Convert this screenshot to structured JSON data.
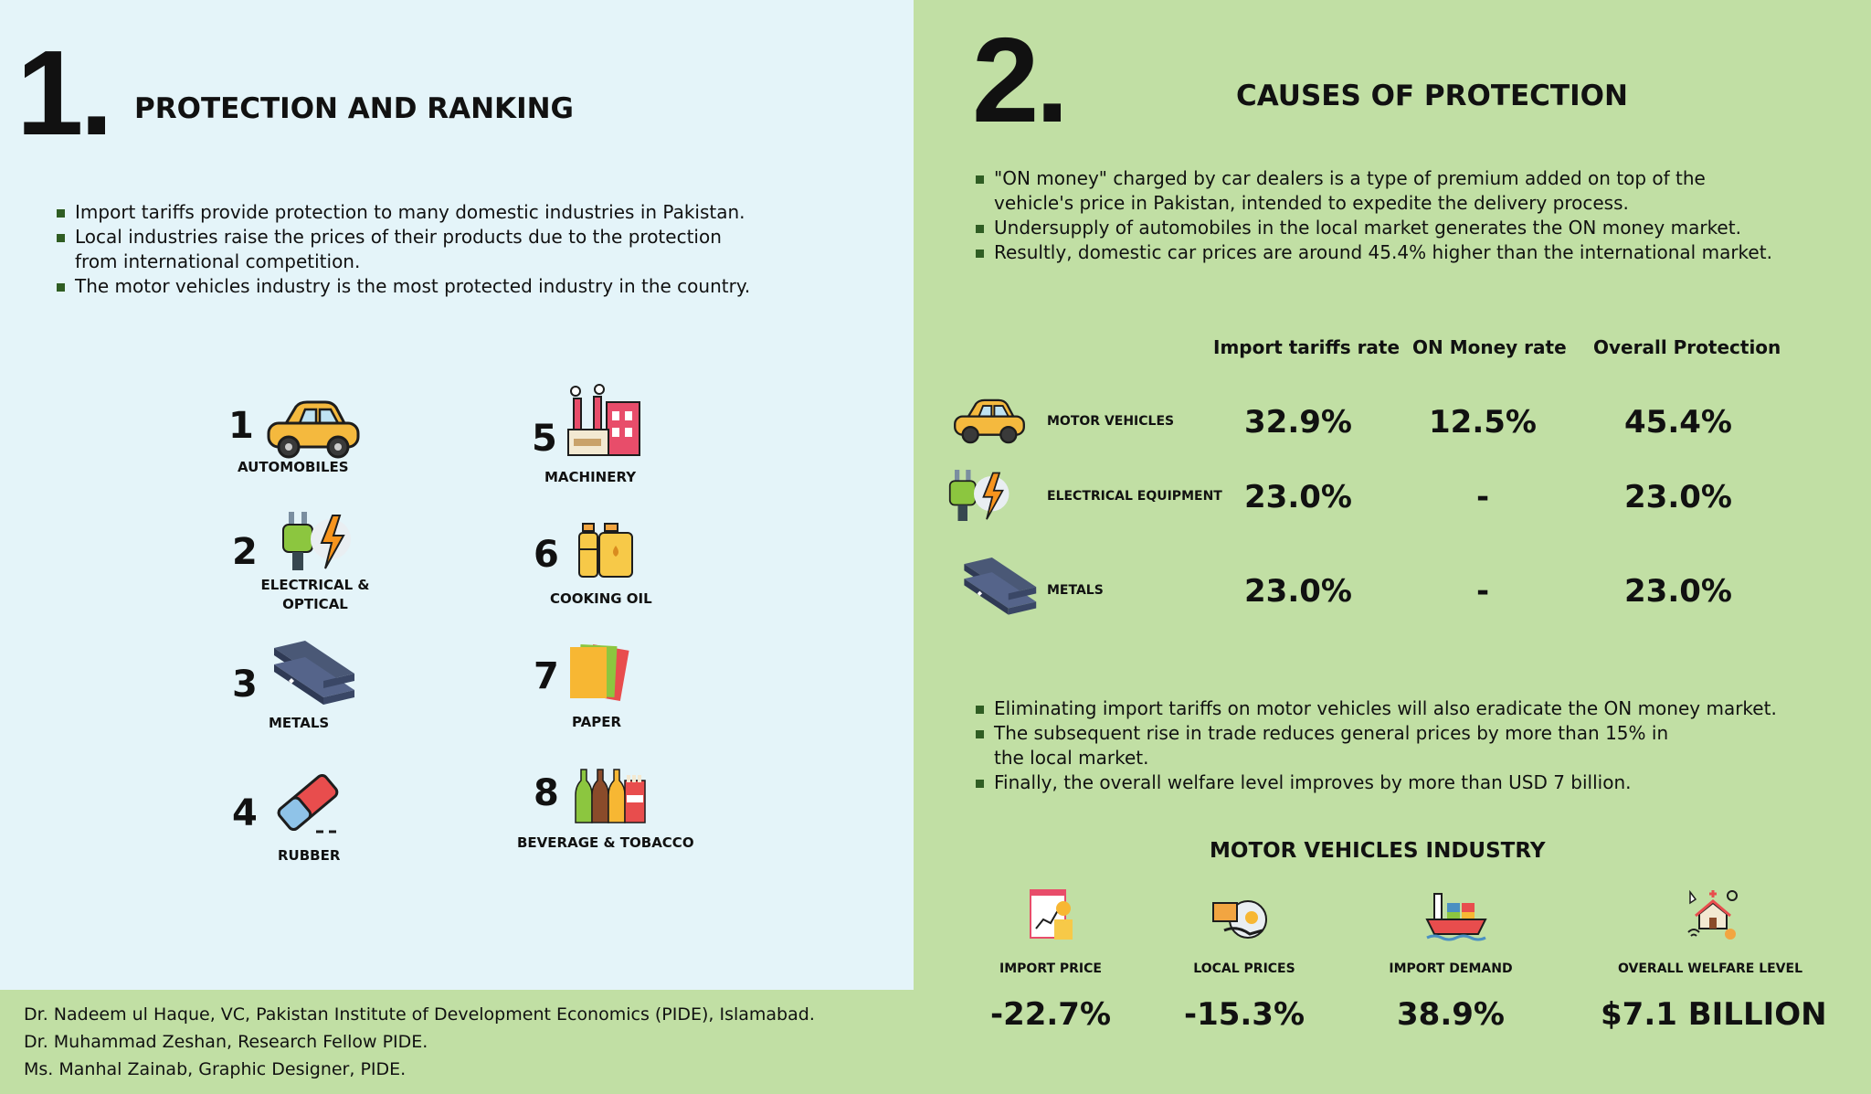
{
  "section1": {
    "number": "1.",
    "title": "PROTECTION AND RANKING",
    "bullets": [
      "Import tariffs provide protection to many domestic industries in Pakistan.",
      "Local industries raise the prices of their products due to the protection from international competition.",
      "The motor vehicles industry is the most protected industry in the country."
    ],
    "ranking": [
      {
        "rank": "1",
        "label": "AUTOMOBILES",
        "icon": "car-icon"
      },
      {
        "rank": "2",
        "label": "ELECTRICAL & OPTICAL",
        "icon": "plug-lightning-icon"
      },
      {
        "rank": "3",
        "label": "METALS",
        "icon": "steel-beams-icon"
      },
      {
        "rank": "4",
        "label": "RUBBER",
        "icon": "eraser-icon"
      },
      {
        "rank": "5",
        "label": "MACHINERY",
        "icon": "factory-icon"
      },
      {
        "rank": "6",
        "label": "COOKING OIL",
        "icon": "oil-bottles-icon"
      },
      {
        "rank": "7",
        "label": "PAPER",
        "icon": "paper-sheets-icon"
      },
      {
        "rank": "8",
        "label": "BEVERAGE & TOBACCO",
        "icon": "bottles-cigarettes-icon"
      }
    ]
  },
  "section2": {
    "number": "2.",
    "title": "CAUSES OF PROTECTION",
    "bullets": [
      "\"ON money\" charged by car dealers is a type of premium added on top of the vehicle's price in Pakistan, intended to expedite the delivery process.",
      "Undersupply of automobiles in the local market generates the ON money market.",
      "Resultly, domestic car prices are around 45.4% higher than the international market."
    ],
    "table": {
      "columns": [
        "Import tariffs rate",
        "ON Money rate",
        "Overall Protection"
      ],
      "rows": [
        {
          "label": "MOTOR VEHICLES",
          "icon": "car-icon",
          "values": [
            "32.9%",
            "12.5%",
            "45.4%"
          ]
        },
        {
          "label": "ELECTRICAL EQUIPMENT",
          "icon": "plug-lightning-icon",
          "values": [
            "23.0%",
            "-",
            "23.0%"
          ]
        },
        {
          "label": "METALS",
          "icon": "steel-beams-icon",
          "values": [
            "23.0%",
            "-",
            "23.0%"
          ]
        }
      ]
    },
    "bullets2": [
      "Eliminating import tariffs on motor vehicles will also eradicate the ON money market.",
      "The subsequent rise in trade reduces general prices by more than 15% in the local market.",
      "Finally, the overall welfare level improves by more than USD 7 billion."
    ],
    "industry": {
      "title": "MOTOR VEHICLES INDUSTRY",
      "stats": [
        {
          "label": "IMPORT PRICE",
          "value": "-22.7%",
          "icon": "price-chart-icon"
        },
        {
          "label": "LOCAL PRICES",
          "value": "-15.3%",
          "icon": "price-tag-icon"
        },
        {
          "label": "IMPORT DEMAND",
          "value": "38.9%",
          "icon": "cargo-ship-icon"
        },
        {
          "label": "OVERALL WELFARE LEVEL",
          "value": "$7.1 BILLION",
          "icon": "welfare-house-icon"
        }
      ]
    }
  },
  "credits": [
    "Dr. Nadeem ul Haque, VC, Pakistan Institute of Development Economics (PIDE), Islamabad.",
    "Dr. Muhammad Zeshan, Research Fellow PIDE.",
    "Ms. Manhal Zainab, Graphic Designer, PIDE."
  ],
  "colors": {
    "left_bg": "#e4f4f9",
    "right_bg": "#c1dfa4",
    "bullet": "#2f5d23"
  }
}
